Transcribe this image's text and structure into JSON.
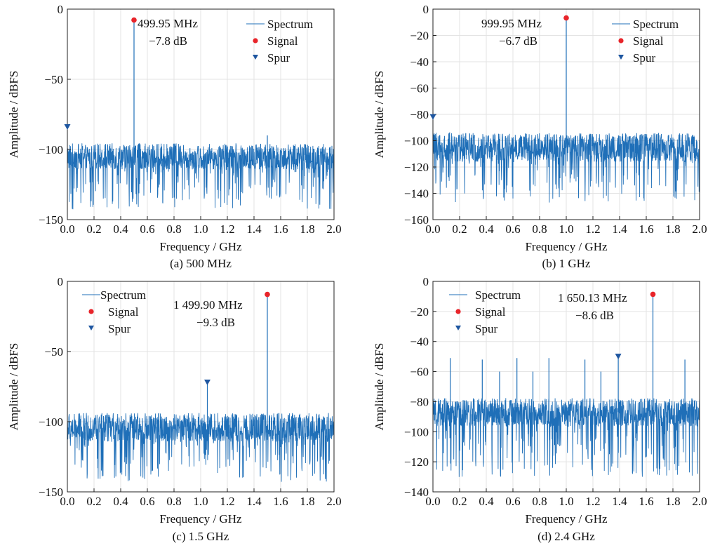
{
  "figure": {
    "colors": {
      "spectrum": "#1f6fb8",
      "signal": "#e8242a",
      "spur": "#1e56a0",
      "grid": "#e3e3e3",
      "axis": "#222222"
    }
  },
  "chart_data": [
    {
      "type": "line",
      "panel": "a",
      "caption": "(a) 500 MHz",
      "xlabel": "Frequency / GHz",
      "ylabel": "Amplitude / dBFS",
      "xlim": [
        0,
        2.0
      ],
      "ylim": [
        -150,
        0
      ],
      "xticks": [
        0.0,
        0.2,
        0.4,
        0.6,
        0.8,
        1.0,
        1.2,
        1.4,
        1.6,
        1.8,
        2.0
      ],
      "xtick_labels": [
        "0.0",
        "0.2",
        "0.4",
        "0.6",
        "0.8",
        "1.0",
        "1.2",
        "1.4",
        "1.6",
        "1.8",
        "2.0"
      ],
      "yticks": [
        0,
        -50,
        -100,
        -150
      ],
      "ytick_labels": [
        "0",
        "−50",
        "−100",
        "−150"
      ],
      "grid": true,
      "legend": {
        "position": "top-right",
        "entries": [
          "Spectrum",
          "Signal",
          "Spur"
        ]
      },
      "series": [
        {
          "name": "Spectrum",
          "noise_floor": {
            "mean_db": -105,
            "upper_db": -94,
            "lower_db": -145
          },
          "peaks": [
            {
              "x": 0.49995,
              "y": -7.8
            },
            {
              "x": 1.5,
              "y": -90
            }
          ]
        },
        {
          "name": "Signal",
          "points": [
            {
              "x": 0.49995,
              "y": -7.8
            }
          ]
        },
        {
          "name": "Spur",
          "points": [
            {
              "x": 0.0,
              "y": -84
            }
          ]
        }
      ],
      "annotation": {
        "line1": "499.95 MHz",
        "line2": "−7.8 dB",
        "x": 0.49995,
        "y": -7.8
      }
    },
    {
      "type": "line",
      "panel": "b",
      "caption": "(b) 1 GHz",
      "xlabel": "Frequency / GHz",
      "ylabel": "Amplitude / dBFS",
      "xlim": [
        0,
        2.0
      ],
      "ylim": [
        -160,
        0
      ],
      "xticks": [
        0.0,
        0.2,
        0.4,
        0.6,
        0.8,
        1.0,
        1.2,
        1.4,
        1.6,
        1.8,
        2.0
      ],
      "xtick_labels": [
        "0.0",
        "0.2",
        "0.4",
        "0.6",
        "0.8",
        "1.0",
        "1.2",
        "1.4",
        "1.6",
        "1.8",
        "2.0"
      ],
      "yticks": [
        0,
        -20,
        -40,
        -60,
        -80,
        -100,
        -120,
        -140,
        -160
      ],
      "ytick_labels": [
        "0",
        "−20",
        "−40",
        "−60",
        "−80",
        "−100",
        "−120",
        "−140",
        "−160"
      ],
      "grid": true,
      "legend": {
        "position": "top-right",
        "entries": [
          "Spectrum",
          "Signal",
          "Spur"
        ]
      },
      "series": [
        {
          "name": "Spectrum",
          "noise_floor": {
            "mean_db": -105,
            "upper_db": -92,
            "lower_db": -150
          },
          "peaks": [
            {
              "x": 0.99995,
              "y": -6.7
            }
          ]
        },
        {
          "name": "Signal",
          "points": [
            {
              "x": 0.99995,
              "y": -6.7
            }
          ]
        },
        {
          "name": "Spur",
          "points": [
            {
              "x": 0.0,
              "y": -82
            }
          ]
        }
      ],
      "annotation": {
        "line1": "999.95 MHz",
        "line2": "−6.7 dB",
        "x": 0.99995,
        "y": -6.7
      }
    },
    {
      "type": "line",
      "panel": "c",
      "caption": "(c) 1.5 GHz",
      "xlabel": "Frequency / GHz",
      "ylabel": "Amplitude / dBFS",
      "xlim": [
        0,
        2.0
      ],
      "ylim": [
        -150,
        0
      ],
      "xticks": [
        0.0,
        0.2,
        0.4,
        0.6,
        0.8,
        1.0,
        1.2,
        1.4,
        1.6,
        1.8,
        2.0
      ],
      "xtick_labels": [
        "0.0",
        "0.2",
        "0.4",
        "0.6",
        "0.8",
        "1.0",
        "1.2",
        "1.4",
        "1.6",
        "1.8",
        "2.0"
      ],
      "yticks": [
        0,
        -50,
        -100,
        -150
      ],
      "ytick_labels": [
        "0",
        "−50",
        "−100",
        "−150"
      ],
      "grid": true,
      "legend": {
        "position": "top-left",
        "entries": [
          "Spectrum",
          "Signal",
          "Spur"
        ]
      },
      "series": [
        {
          "name": "Spectrum",
          "noise_floor": {
            "mean_db": -104,
            "upper_db": -92,
            "lower_db": -145
          },
          "peaks": [
            {
              "x": 1.4999,
              "y": -9.3
            },
            {
              "x": 1.05,
              "y": -72
            }
          ]
        },
        {
          "name": "Signal",
          "points": [
            {
              "x": 1.4999,
              "y": -9.3
            }
          ]
        },
        {
          "name": "Spur",
          "points": [
            {
              "x": 1.05,
              "y": -72
            }
          ]
        }
      ],
      "annotation": {
        "line1": "1 499.90 MHz",
        "line2": "−9.3 dB",
        "x": 1.4999,
        "y": -9.3
      }
    },
    {
      "type": "line",
      "panel": "d",
      "caption": "(d) 2.4 GHz",
      "xlabel": "Frequency / GHz",
      "ylabel": "Amplitude / dBFS",
      "xlim": [
        0,
        2.0
      ],
      "ylim": [
        -140,
        0
      ],
      "xticks": [
        0.0,
        0.2,
        0.4,
        0.6,
        0.8,
        1.0,
        1.2,
        1.4,
        1.6,
        1.8,
        2.0
      ],
      "xtick_labels": [
        "0.0",
        "0.2",
        "0.4",
        "0.6",
        "0.8",
        "1.0",
        "1.2",
        "1.4",
        "1.6",
        "1.8",
        "2.0"
      ],
      "yticks": [
        0,
        -20,
        -40,
        -60,
        -80,
        -100,
        -120,
        -140
      ],
      "ytick_labels": [
        "0",
        "−20",
        "−40",
        "−60",
        "−80",
        "−100",
        "−120",
        "−140"
      ],
      "grid": true,
      "legend": {
        "position": "top-left",
        "entries": [
          "Spectrum",
          "Signal",
          "Spur"
        ]
      },
      "series": [
        {
          "name": "Spectrum",
          "noise_floor": {
            "mean_db": -87,
            "upper_db": -76,
            "lower_db": -133
          },
          "peaks": [
            {
              "x": 1.65013,
              "y": -8.6
            },
            {
              "x": 1.39,
              "y": -50
            },
            {
              "x": 0.13,
              "y": -51
            },
            {
              "x": 0.37,
              "y": -52
            },
            {
              "x": 0.5,
              "y": -60
            },
            {
              "x": 0.63,
              "y": -51
            },
            {
              "x": 0.75,
              "y": -60
            },
            {
              "x": 0.87,
              "y": -51
            },
            {
              "x": 1.14,
              "y": -52
            },
            {
              "x": 1.26,
              "y": -60
            },
            {
              "x": 1.89,
              "y": -52
            }
          ]
        },
        {
          "name": "Signal",
          "points": [
            {
              "x": 1.65013,
              "y": -8.6
            }
          ]
        },
        {
          "name": "Spur",
          "points": [
            {
              "x": 1.39,
              "y": -50
            }
          ]
        }
      ],
      "annotation": {
        "line1": "1 650.13 MHz",
        "line2": "−8.6 dB",
        "x": 1.65013,
        "y": -8.6
      }
    }
  ]
}
